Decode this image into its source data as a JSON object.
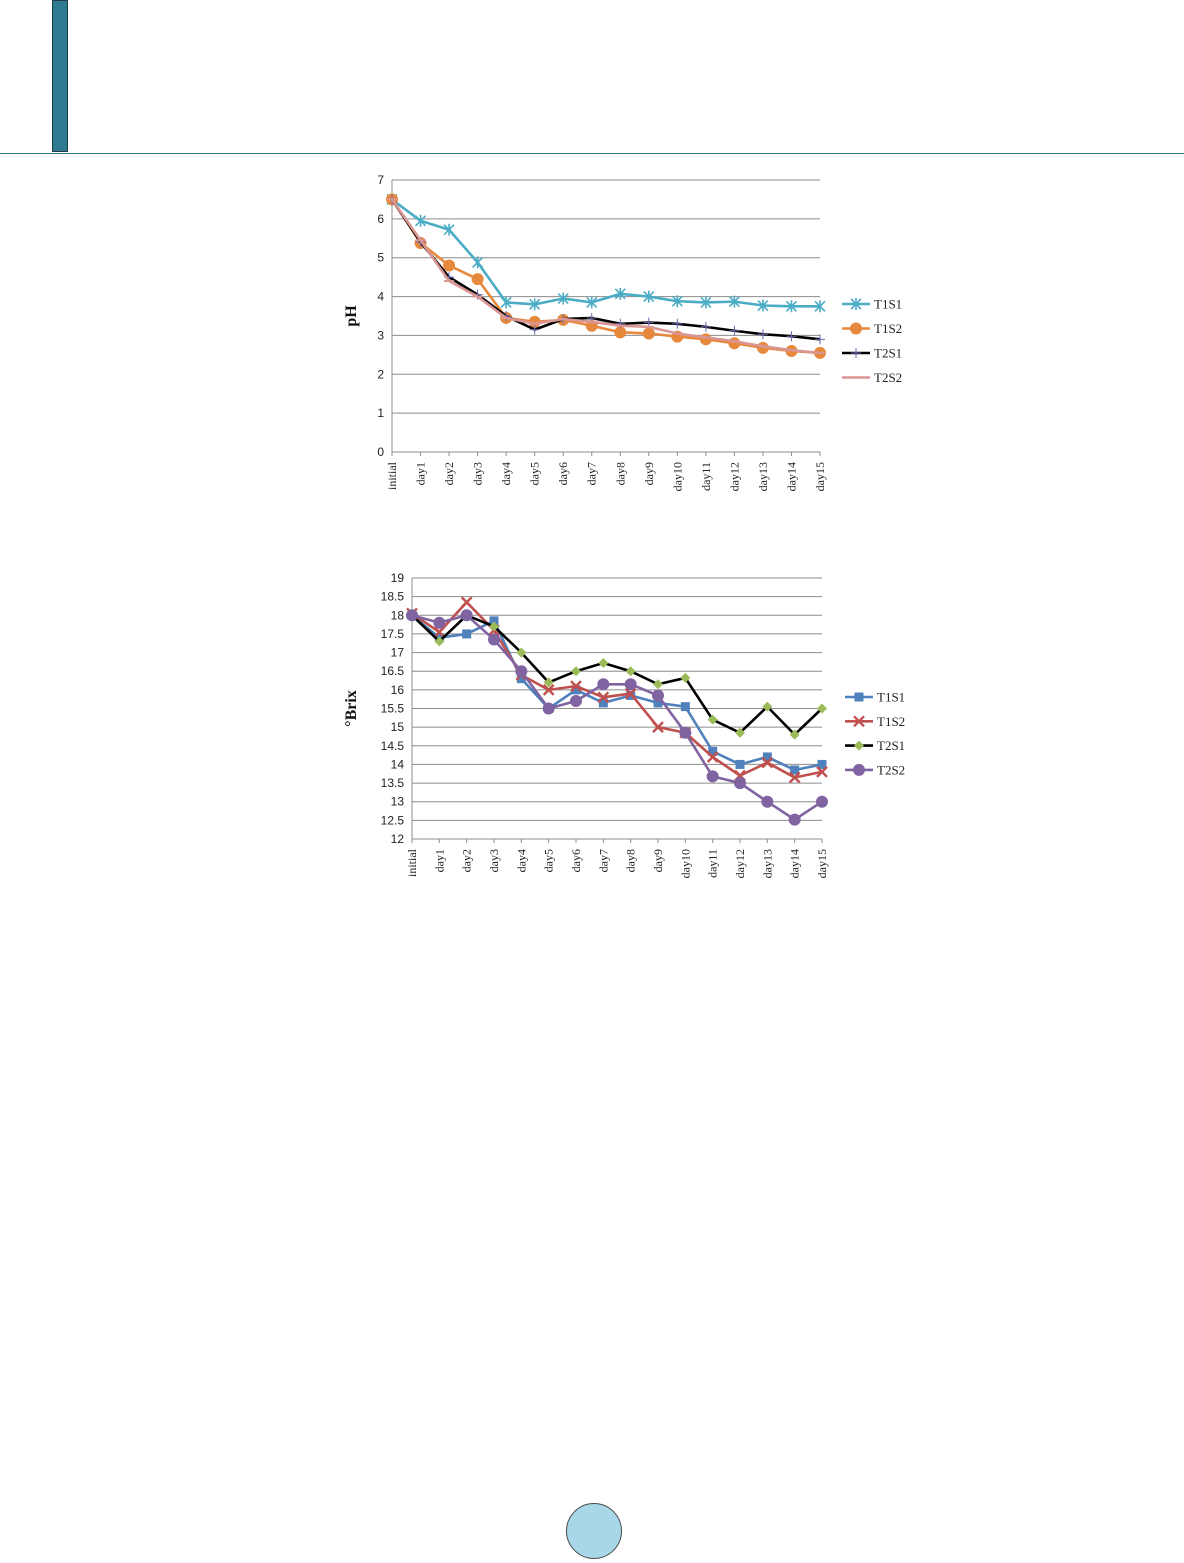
{
  "page": {
    "accent_color": "#2e7a91",
    "rule_color": "#2e7a91",
    "badge_color": "#a8d8e8"
  },
  "chart_data": [
    {
      "type": "line",
      "xlabel": "",
      "ylabel": "pH",
      "ylim": [
        0,
        7
      ],
      "yticks": [
        "0",
        "1",
        "2",
        "3",
        "4",
        "5",
        "6",
        "7"
      ],
      "categories": [
        "initial",
        "day1",
        "day2",
        "day3",
        "day4",
        "day5",
        "day6",
        "day7",
        "day8",
        "day9",
        "day10",
        "day11",
        "day12",
        "day13",
        "day14",
        "day15"
      ],
      "grid": true,
      "legend_position": "right",
      "series": [
        {
          "name": "T1S1",
          "color": "#4bacc6",
          "marker": "asterisk",
          "values": [
            6.5,
            5.95,
            5.72,
            4.88,
            3.85,
            3.8,
            3.95,
            3.85,
            4.07,
            4.0,
            3.88,
            3.85,
            3.87,
            3.77,
            3.75,
            3.75
          ]
        },
        {
          "name": "T1S2",
          "color": "#e7893d",
          "marker": "circle",
          "values": [
            6.5,
            5.38,
            4.8,
            4.45,
            3.45,
            3.35,
            3.4,
            3.25,
            3.08,
            3.05,
            2.97,
            2.9,
            2.8,
            2.68,
            2.6,
            2.55
          ]
        },
        {
          "name": "T2S1",
          "color": "#000000",
          "marker": "plus",
          "values": [
            6.5,
            5.4,
            4.5,
            4.05,
            3.5,
            3.15,
            3.42,
            3.45,
            3.3,
            3.33,
            3.3,
            3.22,
            3.12,
            3.03,
            2.98,
            2.9
          ]
        },
        {
          "name": "T2S2",
          "color": "#d99694",
          "marker": "dash",
          "values": [
            6.5,
            5.45,
            4.4,
            4.0,
            3.45,
            3.3,
            3.42,
            3.35,
            3.25,
            3.22,
            3.05,
            2.95,
            2.85,
            2.72,
            2.62,
            2.55
          ]
        }
      ]
    },
    {
      "type": "line",
      "xlabel": "",
      "ylabel": "°Brix",
      "ylim": [
        12,
        19
      ],
      "yticks": [
        "12",
        "12.5",
        "13",
        "13.5",
        "14",
        "14.5",
        "15",
        "15.5",
        "16",
        "16.5",
        "17",
        "17.5",
        "18",
        "18.5",
        "19"
      ],
      "categories": [
        "initial",
        "day1",
        "day2",
        "day3",
        "day4",
        "day5",
        "day6",
        "day7",
        "day8",
        "day9",
        "day10",
        "day11",
        "day12",
        "day13",
        "day14",
        "day15"
      ],
      "grid": true,
      "legend_position": "right",
      "series": [
        {
          "name": "T1S1",
          "color": "#4f81bd",
          "marker": "square",
          "values": [
            18.0,
            17.4,
            17.5,
            17.85,
            16.3,
            15.5,
            16.0,
            15.65,
            15.85,
            15.65,
            15.55,
            14.35,
            14.0,
            14.2,
            13.85,
            14.0
          ]
        },
        {
          "name": "T1S2",
          "color": "#c0504d",
          "marker": "x",
          "values": [
            18.05,
            17.55,
            18.35,
            17.6,
            16.4,
            16.0,
            16.1,
            15.8,
            15.9,
            15.0,
            14.85,
            14.2,
            13.7,
            14.05,
            13.65,
            13.8
          ]
        },
        {
          "name": "T2S1",
          "color": "#000000",
          "marker": "diamond",
          "marker_color": "#9bbb59",
          "values": [
            18.0,
            17.3,
            18.0,
            17.7,
            17.0,
            16.2,
            16.5,
            16.72,
            16.5,
            16.15,
            16.32,
            15.2,
            14.85,
            15.55,
            14.8,
            15.5
          ]
        },
        {
          "name": "T2S2",
          "color": "#8064a2",
          "marker": "circle",
          "values": [
            18.0,
            17.8,
            18.0,
            17.35,
            16.5,
            15.5,
            15.7,
            16.15,
            16.15,
            15.85,
            14.85,
            13.68,
            13.5,
            13.0,
            12.52,
            13.0
          ]
        }
      ]
    }
  ]
}
